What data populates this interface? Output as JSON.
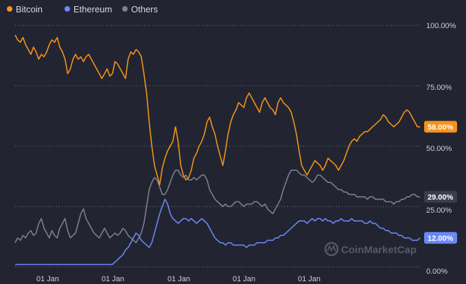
{
  "chart_data": {
    "type": "line",
    "title": "",
    "xlabel": "",
    "ylabel": "",
    "ylim": [
      0,
      100
    ],
    "y_tick_labels": [
      "100.00%",
      "75.00%",
      "50.00%",
      "25.00%",
      "0.00%"
    ],
    "y_tick_values": [
      100,
      75,
      50,
      25,
      0
    ],
    "x_tick_labels": [
      "01 Jan",
      "01 Jan",
      "01 Jan",
      "01 Jan",
      "01 Jan"
    ],
    "grid": true,
    "legend_position": "top-left",
    "watermark": "CoinMarketCap",
    "series": [
      {
        "name": "Bitcoin",
        "color": "#f7931a",
        "last_label": "58.00%",
        "values": [
          96,
          94,
          93,
          95,
          92,
          90,
          88,
          91,
          89,
          86,
          88,
          87,
          89,
          92,
          94,
          93,
          95,
          91,
          89,
          86,
          80,
          82,
          86,
          88,
          86,
          87,
          85,
          87,
          88,
          86,
          84,
          82,
          80,
          78,
          80,
          82,
          79,
          80,
          85,
          84,
          82,
          80,
          78,
          86,
          89,
          88,
          90,
          89,
          87,
          80,
          72,
          60,
          50,
          42,
          38,
          34,
          41,
          45,
          48,
          50,
          52,
          58,
          52,
          42,
          38,
          36,
          37,
          40,
          45,
          47,
          50,
          52,
          55,
          60,
          62,
          58,
          55,
          50,
          46,
          42,
          48,
          55,
          60,
          63,
          65,
          68,
          67,
          66,
          70,
          72,
          70,
          68,
          66,
          64,
          68,
          70,
          68,
          66,
          65,
          63,
          68,
          70,
          68,
          67,
          66,
          64,
          60,
          55,
          48,
          42,
          40,
          38,
          40,
          42,
          44,
          43,
          42,
          40,
          42,
          45,
          44,
          43,
          42,
          40,
          42,
          44,
          47,
          50,
          52,
          53,
          52,
          54,
          55,
          56,
          56,
          57,
          58,
          59,
          60,
          61,
          63,
          62,
          60,
          59,
          58,
          59,
          60,
          62,
          64,
          65,
          64,
          62,
          60,
          58,
          58
        ]
      },
      {
        "name": "Ethereum",
        "color": "#6b88f7",
        "last_label": "12.00%",
        "values": [
          1,
          1,
          1,
          1,
          1,
          1,
          1,
          1,
          1,
          1,
          1,
          1,
          1,
          1,
          1,
          1,
          1,
          1,
          1,
          1,
          1,
          1,
          1,
          1,
          1,
          1,
          1,
          1,
          1,
          1,
          1,
          1,
          1,
          1,
          1,
          1,
          1,
          1,
          2,
          3,
          4,
          5,
          7,
          8,
          10,
          12,
          14,
          13,
          11,
          10,
          9,
          8,
          10,
          14,
          18,
          22,
          25,
          28,
          26,
          22,
          20,
          19,
          18,
          19,
          20,
          20,
          19,
          20,
          19,
          18,
          19,
          20,
          19,
          18,
          16,
          14,
          12,
          11,
          10,
          10,
          9,
          10,
          10,
          9,
          9,
          9,
          9,
          9,
          8,
          9,
          9,
          9,
          10,
          10,
          10,
          10,
          11,
          11,
          11,
          12,
          12,
          13,
          13,
          14,
          15,
          16,
          17,
          18,
          19,
          19,
          19,
          18,
          19,
          20,
          19,
          20,
          20,
          19,
          20,
          19,
          19,
          18,
          19,
          19,
          20,
          19,
          19,
          19,
          20,
          19,
          19,
          19,
          19,
          18,
          18,
          19,
          18,
          18,
          17,
          16,
          16,
          15,
          15,
          14,
          14,
          14,
          13,
          13,
          12,
          12,
          12,
          11,
          11,
          11,
          12
        ]
      },
      {
        "name": "Others",
        "color": "#7d8090",
        "last_label": "29.00%",
        "values": [
          10,
          12,
          11,
          13,
          12,
          14,
          15,
          13,
          14,
          18,
          20,
          16,
          14,
          12,
          15,
          13,
          12,
          16,
          18,
          20,
          15,
          12,
          13,
          14,
          18,
          22,
          24,
          20,
          18,
          16,
          14,
          13,
          12,
          14,
          16,
          14,
          12,
          13,
          14,
          13,
          14,
          16,
          15,
          13,
          12,
          11,
          10,
          12,
          14,
          18,
          25,
          32,
          35,
          37,
          36,
          33,
          30,
          30,
          32,
          35,
          38,
          40,
          40,
          38,
          37,
          38,
          36,
          36,
          37,
          36,
          37,
          38,
          38,
          36,
          32,
          30,
          28,
          27,
          26,
          25,
          26,
          25,
          25,
          26,
          27,
          27,
          26,
          25,
          26,
          26,
          26,
          27,
          27,
          26,
          25,
          26,
          24,
          23,
          22,
          24,
          26,
          28,
          32,
          35,
          38,
          40,
          40,
          40,
          39,
          38,
          38,
          37,
          36,
          35,
          36,
          38,
          38,
          37,
          36,
          35,
          35,
          34,
          33,
          32,
          32,
          31,
          31,
          30,
          30,
          30,
          29,
          29,
          29,
          29,
          28,
          29,
          29,
          28,
          28,
          28,
          28,
          27,
          27,
          27,
          26,
          27,
          27,
          28,
          28,
          29,
          29,
          30,
          30,
          29,
          29
        ]
      }
    ]
  }
}
